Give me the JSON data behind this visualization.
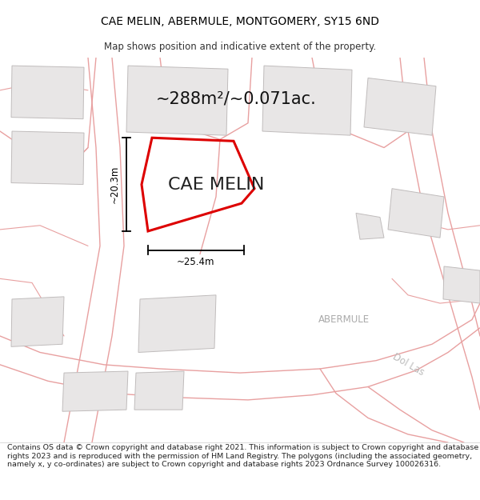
{
  "title_line1": "CAE MELIN, ABERMULE, MONTGOMERY, SY15 6ND",
  "title_line2": "Map shows position and indicative extent of the property.",
  "area_text": "~288m²/~0.071ac.",
  "property_label": "CAE MELIN",
  "dim_width": "~25.4m",
  "dim_height": "~20.3m",
  "location_label1": "ABERMULE",
  "location_label2": "Dol Las",
  "footer_text": "Contains OS data © Crown copyright and database right 2021. This information is subject to Crown copyright and database rights 2023 and is reproduced with the permission of HM Land Registry. The polygons (including the associated geometry, namely x, y co-ordinates) are subject to Crown copyright and database rights 2023 Ordnance Survey 100026316.",
  "map_bg_color": "#f9f8f8",
  "building_color": "#e8e6e6",
  "building_edge_color": "#c0bcbc",
  "road_line_color": "#e8a0a0",
  "property_polygon_color": "#dd0000",
  "footer_bg": "#ffffff",
  "title_bg": "#ffffff",
  "title_fontsize": 10,
  "subtitle_fontsize": 8.5,
  "area_fontsize": 15,
  "label_fontsize": 16,
  "dim_fontsize": 8.5,
  "footer_fontsize": 6.8
}
